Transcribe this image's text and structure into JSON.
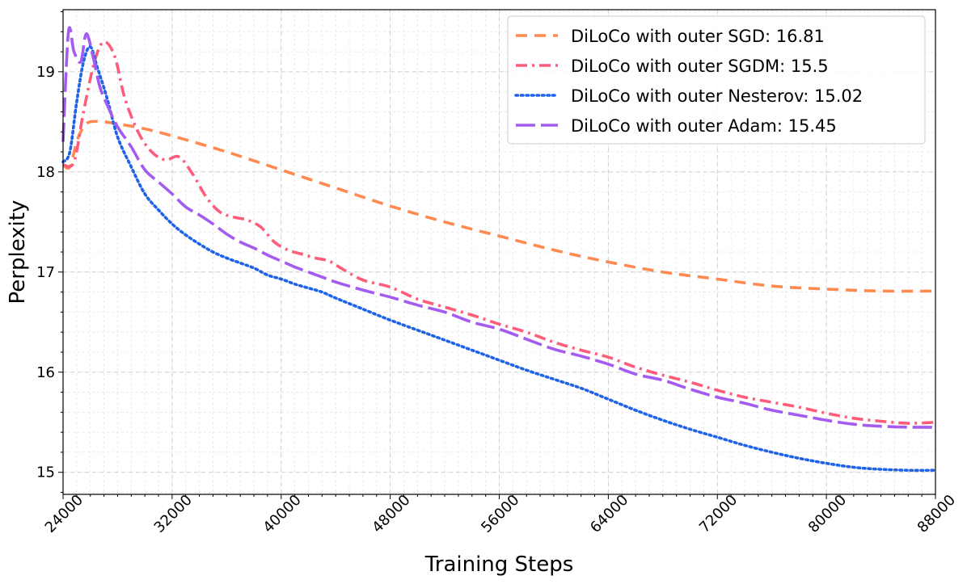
{
  "chart_data": {
    "type": "line",
    "title": "",
    "xlabel": "Training Steps",
    "ylabel": "Perplexity",
    "xlim": [
      24000,
      88000
    ],
    "ylim": [
      14.78,
      19.62
    ],
    "x_ticks": [
      24000,
      32000,
      40000,
      48000,
      56000,
      64000,
      72000,
      80000,
      88000
    ],
    "y_ticks": [
      15,
      16,
      17,
      18,
      19
    ],
    "grid": true,
    "legend_position": "top-right",
    "series": [
      {
        "name": "DiLoCo with outer SGD: 16.81",
        "color": "#ff8a50",
        "style": "dashed",
        "x": [
          24000,
          24500,
          25000,
          25500,
          26000,
          27000,
          28000,
          30000,
          32000,
          36000,
          40000,
          44000,
          48000,
          52000,
          56000,
          60000,
          64000,
          68000,
          72000,
          76000,
          80000,
          84000,
          88000
        ],
        "y": [
          18.07,
          18.05,
          18.3,
          18.45,
          18.5,
          18.5,
          18.48,
          18.43,
          18.36,
          18.2,
          18.02,
          17.84,
          17.66,
          17.5,
          17.36,
          17.22,
          17.1,
          17.0,
          16.93,
          16.86,
          16.83,
          16.81,
          16.81
        ]
      },
      {
        "name": "DiLoCo with outer SGDM: 15.5",
        "color": "#ff5c7a",
        "style": "dashdot",
        "x": [
          24000,
          24800,
          25500,
          26300,
          27000,
          27800,
          28500,
          29500,
          30500,
          31500,
          32500,
          33500,
          34500,
          35500,
          36500,
          37500,
          38500,
          39500,
          40500,
          41500,
          42500,
          43500,
          44500,
          46000,
          48000,
          50000,
          52000,
          54000,
          56000,
          58000,
          60000,
          62000,
          64000,
          66000,
          68000,
          70000,
          72000,
          74000,
          76000,
          78000,
          80000,
          82000,
          84000,
          86000,
          88000
        ],
        "y": [
          18.07,
          18.1,
          18.6,
          19.1,
          19.3,
          19.15,
          18.75,
          18.4,
          18.2,
          18.12,
          18.15,
          17.98,
          17.75,
          17.6,
          17.55,
          17.52,
          17.45,
          17.3,
          17.22,
          17.18,
          17.14,
          17.11,
          17.03,
          16.92,
          16.85,
          16.73,
          16.65,
          16.57,
          16.48,
          16.4,
          16.3,
          16.22,
          16.15,
          16.05,
          15.97,
          15.9,
          15.82,
          15.75,
          15.7,
          15.65,
          15.59,
          15.54,
          15.51,
          15.49,
          15.5
        ]
      },
      {
        "name": "DiLoCo with outer Nesterov: 15.02",
        "color": "#1f63e8",
        "style": "dotted",
        "x": [
          24000,
          24500,
          25000,
          25500,
          26000,
          26500,
          27200,
          28000,
          29000,
          30000,
          31000,
          32000,
          33000,
          34000,
          35000,
          36000,
          37000,
          38000,
          39000,
          40000,
          41000,
          42000,
          43000,
          44000,
          46000,
          48000,
          50000,
          52000,
          54000,
          56000,
          58000,
          60000,
          62000,
          64000,
          66000,
          68000,
          70000,
          72000,
          74000,
          76000,
          78000,
          80000,
          82000,
          84000,
          86000,
          88000
        ],
        "y": [
          18.1,
          18.2,
          18.7,
          19.1,
          19.25,
          19.05,
          18.75,
          18.35,
          18.05,
          17.78,
          17.62,
          17.48,
          17.37,
          17.28,
          17.2,
          17.14,
          17.09,
          17.04,
          16.97,
          16.93,
          16.88,
          16.84,
          16.8,
          16.74,
          16.63,
          16.52,
          16.42,
          16.32,
          16.22,
          16.12,
          16.02,
          15.93,
          15.84,
          15.73,
          15.62,
          15.52,
          15.43,
          15.35,
          15.27,
          15.2,
          15.14,
          15.09,
          15.05,
          15.03,
          15.02,
          15.02
        ]
      },
      {
        "name": "DiLoCo with outer Adam: 15.45",
        "color": "#a45cf0",
        "style": "longdash",
        "x": [
          24000,
          24400,
          24800,
          25300,
          25700,
          26200,
          26700,
          27300,
          28000,
          29000,
          30000,
          31000,
          32000,
          33000,
          34000,
          35000,
          36000,
          37000,
          38000,
          39000,
          40000,
          41000,
          42000,
          43000,
          44000,
          46000,
          48000,
          50000,
          52000,
          54000,
          56000,
          58000,
          60000,
          62000,
          64000,
          66000,
          68000,
          70000,
          72000,
          74000,
          76000,
          78000,
          80000,
          82000,
          84000,
          86000,
          88000
        ],
        "y": [
          18.3,
          19.4,
          19.2,
          19.1,
          19.38,
          19.15,
          18.85,
          18.65,
          18.45,
          18.25,
          18.02,
          17.9,
          17.78,
          17.65,
          17.57,
          17.48,
          17.38,
          17.3,
          17.24,
          17.17,
          17.11,
          17.05,
          17.0,
          16.95,
          16.9,
          16.82,
          16.75,
          16.67,
          16.6,
          16.5,
          16.43,
          16.33,
          16.23,
          16.16,
          16.08,
          15.98,
          15.92,
          15.83,
          15.75,
          15.69,
          15.62,
          15.57,
          15.52,
          15.48,
          15.46,
          15.45,
          15.45
        ]
      }
    ]
  }
}
